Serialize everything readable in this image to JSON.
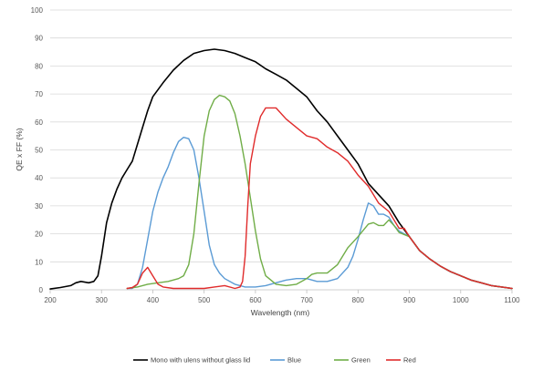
{
  "chart_data": {
    "type": "line",
    "xlabel": "Wavelength (nm)",
    "ylabel": "QE x FF (%)",
    "xlim": [
      200,
      1100
    ],
    "ylim": [
      0,
      100
    ],
    "xticks": [
      200,
      300,
      400,
      500,
      600,
      700,
      800,
      900,
      1000,
      1100
    ],
    "yticks": [
      0,
      10,
      20,
      30,
      40,
      50,
      60,
      70,
      80,
      90,
      100
    ],
    "grid": "horizontal",
    "legend_position": "bottom",
    "series": [
      {
        "name": "Mono with ulens without glass lid",
        "color": "#000000",
        "points": [
          [
            200,
            0.3
          ],
          [
            220,
            0.8
          ],
          [
            240,
            1.5
          ],
          [
            250,
            2.5
          ],
          [
            260,
            3
          ],
          [
            275,
            2.5
          ],
          [
            285,
            3
          ],
          [
            293,
            5
          ],
          [
            300,
            12
          ],
          [
            310,
            24
          ],
          [
            320,
            31
          ],
          [
            330,
            36
          ],
          [
            340,
            40
          ],
          [
            350,
            43
          ],
          [
            360,
            46
          ],
          [
            370,
            52
          ],
          [
            380,
            58
          ],
          [
            390,
            64
          ],
          [
            400,
            69
          ],
          [
            420,
            74
          ],
          [
            440,
            78.5
          ],
          [
            460,
            82
          ],
          [
            480,
            84.5
          ],
          [
            500,
            85.5
          ],
          [
            520,
            86
          ],
          [
            540,
            85.5
          ],
          [
            560,
            84.5
          ],
          [
            580,
            83
          ],
          [
            600,
            81.5
          ],
          [
            620,
            79
          ],
          [
            640,
            77
          ],
          [
            660,
            75
          ],
          [
            680,
            72
          ],
          [
            700,
            69
          ],
          [
            720,
            64
          ],
          [
            740,
            60
          ],
          [
            760,
            55
          ],
          [
            780,
            50
          ],
          [
            800,
            45
          ],
          [
            820,
            38
          ],
          [
            840,
            34
          ],
          [
            860,
            30
          ],
          [
            880,
            24
          ],
          [
            900,
            19
          ],
          [
            920,
            14
          ],
          [
            940,
            11
          ],
          [
            960,
            8.5
          ],
          [
            980,
            6.5
          ],
          [
            1000,
            5
          ],
          [
            1020,
            3.5
          ],
          [
            1040,
            2.5
          ],
          [
            1060,
            1.5
          ],
          [
            1080,
            1
          ],
          [
            1100,
            0.5
          ]
        ]
      },
      {
        "name": "Blue",
        "color": "#5b9bd5",
        "points": [
          [
            350,
            0.5
          ],
          [
            360,
            0.5
          ],
          [
            370,
            2
          ],
          [
            380,
            8
          ],
          [
            390,
            18
          ],
          [
            400,
            28
          ],
          [
            410,
            35
          ],
          [
            420,
            40
          ],
          [
            430,
            44
          ],
          [
            440,
            49
          ],
          [
            450,
            53
          ],
          [
            460,
            54.5
          ],
          [
            470,
            54
          ],
          [
            480,
            50
          ],
          [
            490,
            40
          ],
          [
            500,
            28
          ],
          [
            510,
            16
          ],
          [
            520,
            9
          ],
          [
            530,
            6
          ],
          [
            540,
            4
          ],
          [
            560,
            2
          ],
          [
            580,
            1
          ],
          [
            600,
            1
          ],
          [
            620,
            1.5
          ],
          [
            640,
            2.5
          ],
          [
            660,
            3.5
          ],
          [
            680,
            4
          ],
          [
            700,
            4
          ],
          [
            720,
            3
          ],
          [
            740,
            3
          ],
          [
            760,
            4
          ],
          [
            780,
            8
          ],
          [
            790,
            12
          ],
          [
            800,
            18
          ],
          [
            810,
            25
          ],
          [
            820,
            31
          ],
          [
            830,
            30
          ],
          [
            840,
            27
          ],
          [
            850,
            27
          ],
          [
            860,
            26
          ],
          [
            870,
            23
          ],
          [
            880,
            21
          ],
          [
            900,
            19
          ],
          [
            920,
            14
          ],
          [
            940,
            11
          ],
          [
            960,
            8.5
          ],
          [
            980,
            6.5
          ],
          [
            1000,
            5
          ],
          [
            1020,
            3.5
          ],
          [
            1040,
            2.5
          ],
          [
            1060,
            1.5
          ],
          [
            1080,
            1
          ],
          [
            1100,
            0.5
          ]
        ]
      },
      {
        "name": "Green",
        "color": "#70ad47",
        "points": [
          [
            350,
            0.5
          ],
          [
            370,
            1
          ],
          [
            390,
            2
          ],
          [
            410,
            2.5
          ],
          [
            430,
            3
          ],
          [
            450,
            4
          ],
          [
            460,
            5
          ],
          [
            470,
            9
          ],
          [
            480,
            20
          ],
          [
            490,
            38
          ],
          [
            500,
            55
          ],
          [
            510,
            64
          ],
          [
            520,
            68
          ],
          [
            530,
            69.5
          ],
          [
            540,
            69
          ],
          [
            550,
            67.5
          ],
          [
            560,
            63
          ],
          [
            570,
            55
          ],
          [
            580,
            45
          ],
          [
            590,
            33
          ],
          [
            600,
            21
          ],
          [
            610,
            11
          ],
          [
            620,
            5
          ],
          [
            640,
            2
          ],
          [
            660,
            1.5
          ],
          [
            680,
            2
          ],
          [
            700,
            4
          ],
          [
            710,
            5.5
          ],
          [
            720,
            6
          ],
          [
            740,
            6
          ],
          [
            760,
            9
          ],
          [
            780,
            15
          ],
          [
            800,
            19
          ],
          [
            820,
            23.5
          ],
          [
            830,
            24
          ],
          [
            840,
            23
          ],
          [
            850,
            23
          ],
          [
            860,
            25
          ],
          [
            870,
            23
          ],
          [
            880,
            20.5
          ],
          [
            900,
            19
          ],
          [
            920,
            14
          ],
          [
            940,
            11
          ],
          [
            960,
            8.5
          ],
          [
            980,
            6.5
          ],
          [
            1000,
            5
          ],
          [
            1020,
            3.5
          ],
          [
            1040,
            2.5
          ],
          [
            1060,
            1.5
          ],
          [
            1080,
            1
          ],
          [
            1100,
            0.5
          ]
        ]
      },
      {
        "name": "Red",
        "color": "#e02b2b",
        "points": [
          [
            350,
            0.5
          ],
          [
            360,
            0.8
          ],
          [
            370,
            2
          ],
          [
            380,
            6
          ],
          [
            390,
            8
          ],
          [
            400,
            5
          ],
          [
            410,
            2
          ],
          [
            420,
            1
          ],
          [
            440,
            0.5
          ],
          [
            480,
            0.5
          ],
          [
            500,
            0.5
          ],
          [
            520,
            1
          ],
          [
            540,
            1.5
          ],
          [
            560,
            0.5
          ],
          [
            570,
            1
          ],
          [
            575,
            3
          ],
          [
            580,
            12
          ],
          [
            585,
            30
          ],
          [
            590,
            45
          ],
          [
            600,
            55
          ],
          [
            610,
            62
          ],
          [
            620,
            65
          ],
          [
            640,
            65
          ],
          [
            660,
            61
          ],
          [
            680,
            58
          ],
          [
            700,
            55
          ],
          [
            720,
            54
          ],
          [
            740,
            51
          ],
          [
            760,
            49
          ],
          [
            780,
            46
          ],
          [
            800,
            41
          ],
          [
            820,
            37
          ],
          [
            840,
            31
          ],
          [
            860,
            28
          ],
          [
            870,
            25
          ],
          [
            880,
            22
          ],
          [
            890,
            22
          ],
          [
            900,
            19
          ],
          [
            920,
            14
          ],
          [
            940,
            11
          ],
          [
            960,
            8.5
          ],
          [
            980,
            6.5
          ],
          [
            1000,
            5
          ],
          [
            1020,
            3.5
          ],
          [
            1040,
            2.5
          ],
          [
            1060,
            1.5
          ],
          [
            1080,
            1
          ],
          [
            1100,
            0.5
          ]
        ]
      }
    ]
  }
}
